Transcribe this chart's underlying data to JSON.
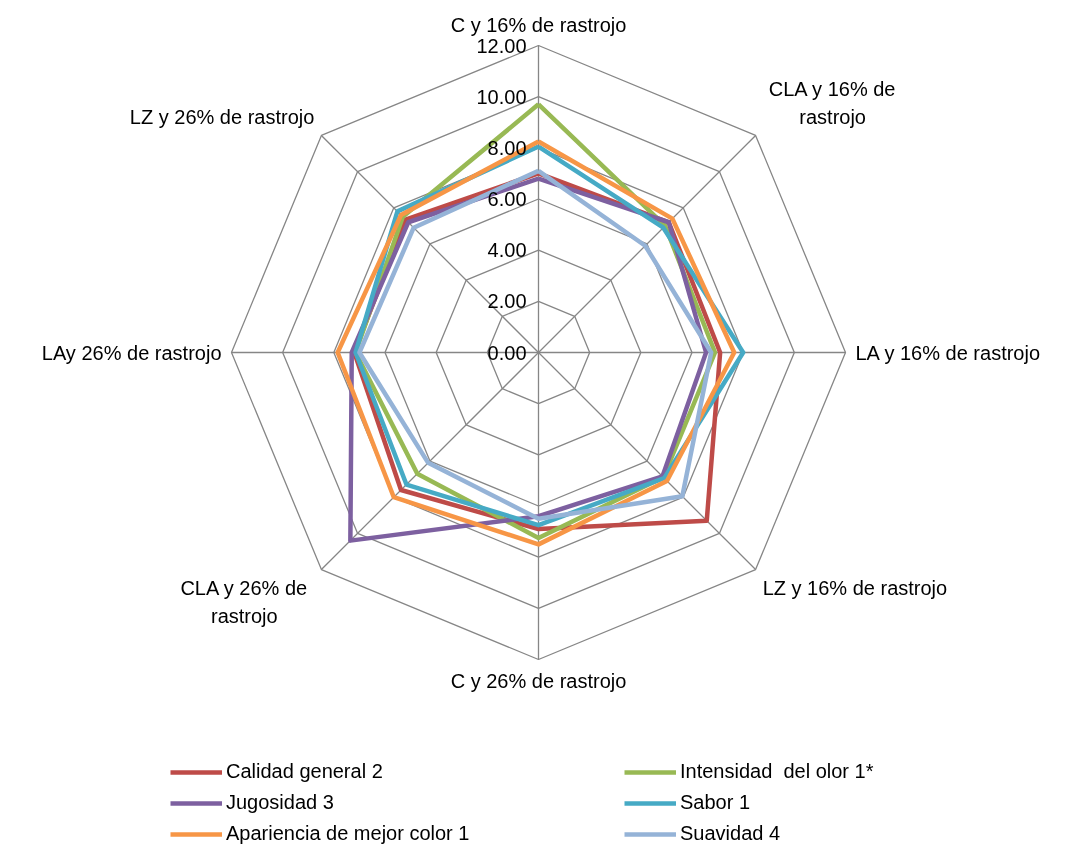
{
  "chart_data": {
    "type": "radar",
    "categories": [
      "C y 16% de rastrojo",
      "CLA y 16% de rastrojo",
      "LA y 16% de rastrojo",
      "LZ y 16% de rastrojo",
      "C y 26% de rastrojo",
      "CLA y 26% de rastrojo",
      "LAy 26% de rastrojo",
      "LZ y 26% de rastrojo"
    ],
    "series": [
      {
        "name": "Calidad general 2",
        "color": "#be4b48",
        "values": [
          7.0,
          7.2,
          7.1,
          9.3,
          6.9,
          7.6,
          7.2,
          7.35
        ]
      },
      {
        "name": "Intensidad  del olor 1*",
        "color": "#98b954",
        "values": [
          9.7,
          7.0,
          6.9,
          6.9,
          7.25,
          6.7,
          7.15,
          7.5
        ]
      },
      {
        "name": "Jugosidad 3",
        "color": "#7d60a0",
        "values": [
          6.8,
          7.2,
          6.55,
          6.85,
          6.4,
          10.4,
          7.3,
          7.2
        ]
      },
      {
        "name": "Sabor 1",
        "color": "#46aac5",
        "values": [
          8.05,
          6.9,
          8.0,
          6.95,
          6.75,
          7.3,
          7.15,
          7.8
        ]
      },
      {
        "name": "Apariencia de mejor color 1",
        "color": "#f79646",
        "values": [
          8.25,
          7.4,
          7.65,
          7.1,
          7.5,
          8.0,
          7.85,
          7.6
        ]
      },
      {
        "name": "Suavidad 4",
        "color": "#95b3d7",
        "values": [
          7.1,
          5.9,
          6.75,
          7.95,
          6.5,
          6.1,
          7.0,
          6.9
        ]
      }
    ],
    "ylim": [
      0,
      12
    ],
    "yticks": [
      {
        "value": 0,
        "label": "0.00"
      },
      {
        "value": 2,
        "label": "2.00"
      },
      {
        "value": 4,
        "label": "4.00"
      },
      {
        "value": 6,
        "label": "6.00"
      },
      {
        "value": 8,
        "label": "8.00"
      },
      {
        "value": 10,
        "label": "10.00"
      },
      {
        "value": 12,
        "label": "12.00"
      }
    ],
    "grid": true,
    "legend": "bottom",
    "marker": "none",
    "line_style": "solid"
  }
}
